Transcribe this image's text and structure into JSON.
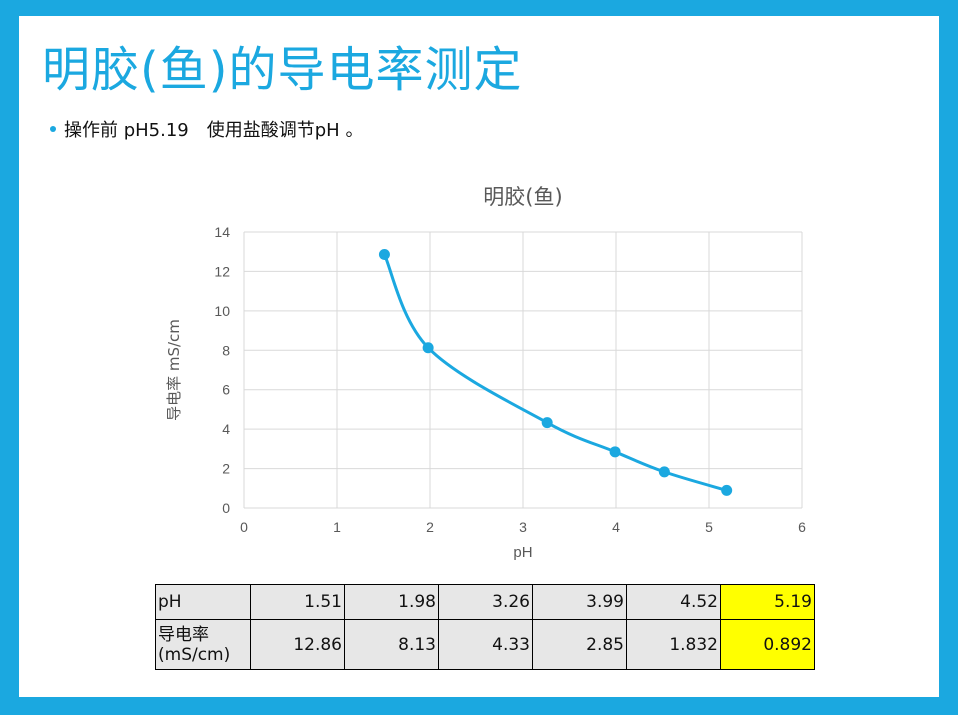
{
  "slide": {
    "title": "明胶(鱼)的导电率测定",
    "bullet": "操作前 pH5.19　使用盐酸调节pH 。"
  },
  "colors": {
    "frame": "#1ba8e0",
    "series": "#1ba8e0",
    "highlight": "#ffff00"
  },
  "chart_data": {
    "type": "scatter",
    "title": "明胶(鱼)",
    "xlabel": "pH",
    "ylabel": "导电率 mS/cm",
    "xlim": [
      0,
      6
    ],
    "ylim": [
      0,
      14
    ],
    "xticks": [
      0,
      1,
      2,
      3,
      4,
      5,
      6
    ],
    "yticks": [
      0,
      2,
      4,
      6,
      8,
      10,
      12,
      14
    ],
    "grid": true,
    "smooth_line": true,
    "series": [
      {
        "x": [
          1.51,
          1.98,
          3.26,
          3.99,
          4.52,
          5.19
        ],
        "y": [
          12.86,
          8.13,
          4.33,
          2.85,
          1.832,
          0.892
        ]
      }
    ]
  },
  "table": {
    "row1_header": "pH",
    "row2_header_line1": "导电率",
    "row2_header_line2": "(mS/cm)",
    "ph": [
      "1.51",
      "1.98",
      "3.26",
      "3.99",
      "4.52",
      "5.19"
    ],
    "conductivity": [
      "12.86",
      "8.13",
      "4.33",
      "2.85",
      "1.832",
      "0.892"
    ]
  }
}
